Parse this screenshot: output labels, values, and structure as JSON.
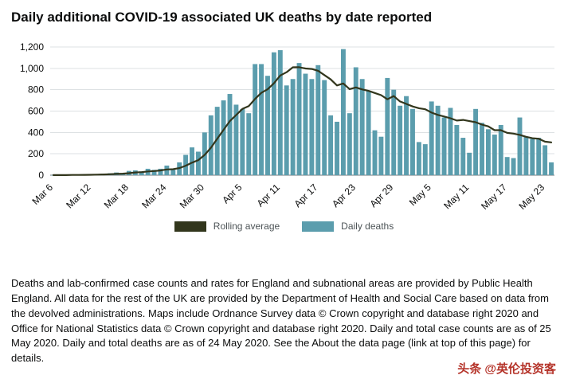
{
  "title": "Daily additional COVID-19 associated UK deaths by date reported",
  "chart_data": {
    "type": "bar",
    "title": "Daily additional COVID-19 associated UK deaths by date reported",
    "xlabel": "",
    "ylabel": "",
    "grid": true,
    "ylim": [
      0,
      1200
    ],
    "y_tick_values": [
      0,
      200,
      400,
      600,
      800,
      1000,
      1200
    ],
    "y_tick_labels": [
      "0",
      "200",
      "400",
      "600",
      "800",
      "1,000",
      "1,200"
    ],
    "x": [
      "Mar 6",
      "Mar 7",
      "Mar 8",
      "Mar 9",
      "Mar 10",
      "Mar 11",
      "Mar 12",
      "Mar 13",
      "Mar 14",
      "Mar 15",
      "Mar 16",
      "Mar 17",
      "Mar 18",
      "Mar 19",
      "Mar 20",
      "Mar 21",
      "Mar 22",
      "Mar 23",
      "Mar 24",
      "Mar 25",
      "Mar 26",
      "Mar 27",
      "Mar 28",
      "Mar 29",
      "Mar 30",
      "Mar 31",
      "Apr 1",
      "Apr 2",
      "Apr 3",
      "Apr 4",
      "Apr 5",
      "Apr 6",
      "Apr 7",
      "Apr 8",
      "Apr 9",
      "Apr 10",
      "Apr 11",
      "Apr 12",
      "Apr 13",
      "Apr 14",
      "Apr 15",
      "Apr 16",
      "Apr 17",
      "Apr 18",
      "Apr 19",
      "Apr 20",
      "Apr 21",
      "Apr 22",
      "Apr 23",
      "Apr 24",
      "Apr 25",
      "Apr 26",
      "Apr 27",
      "Apr 28",
      "Apr 29",
      "Apr 30",
      "May 1",
      "May 2",
      "May 3",
      "May 4",
      "May 5",
      "May 6",
      "May 7",
      "May 8",
      "May 9",
      "May 10",
      "May 11",
      "May 12",
      "May 13",
      "May 14",
      "May 15",
      "May 16",
      "May 17",
      "May 18",
      "May 19",
      "May 20",
      "May 21",
      "May 22",
      "May 23",
      "May 24"
    ],
    "x_tick_indices": [
      0,
      6,
      12,
      18,
      24,
      30,
      36,
      42,
      48,
      54,
      60,
      66,
      72,
      78
    ],
    "x_tick_labels": [
      "Mar 6",
      "Mar 12",
      "Mar 18",
      "Mar 24",
      "Mar 30",
      "Apr 5",
      "Apr 11",
      "Apr 17",
      "Apr 23",
      "Apr 29",
      "May 5",
      "May 11",
      "May 17",
      "May 23"
    ],
    "series": [
      {
        "name": "Daily deaths",
        "type": "bar",
        "color": "#5b9dad",
        "values": [
          1,
          1,
          2,
          3,
          4,
          6,
          8,
          10,
          14,
          18,
          25,
          20,
          40,
          45,
          35,
          60,
          50,
          60,
          90,
          50,
          120,
          190,
          260,
          220,
          400,
          560,
          640,
          700,
          760,
          660,
          620,
          580,
          1040,
          1040,
          930,
          1150,
          1170,
          840,
          900,
          1050,
          950,
          900,
          1030,
          890,
          560,
          500,
          1180,
          580,
          1010,
          900,
          790,
          420,
          360,
          910,
          800,
          650,
          740,
          620,
          310,
          290,
          690,
          650,
          540,
          630,
          470,
          350,
          210,
          620,
          490,
          430,
          380,
          470,
          170,
          160,
          540,
          360,
          340,
          350,
          280,
          120
        ]
      },
      {
        "name": "Rolling average",
        "type": "line",
        "color": "#32361c",
        "values": [
          1,
          1,
          1,
          2,
          2,
          3,
          4,
          5,
          7,
          9,
          12,
          14,
          19,
          25,
          28,
          35,
          39,
          44,
          54,
          56,
          66,
          89,
          117,
          141,
          190,
          257,
          341,
          424,
          506,
          563,
          620,
          646,
          714,
          771,
          804,
          860,
          933,
          964,
          1010,
          1011,
          999,
          994,
          977,
          937,
          897,
          840,
          859,
          806,
          821,
          803,
          789,
          769,
          749,
          710,
          741,
          690,
          667,
          643,
          627,
          617,
          586,
          564,
          549,
          533,
          511,
          517,
          506,
          496,
          473,
          457,
          421,
          421,
          396,
          389,
          377,
          359,
          346,
          341,
          314,
          307
        ]
      }
    ],
    "legend": [
      {
        "label": "Rolling average",
        "color": "#32361c"
      },
      {
        "label": "Daily deaths",
        "color": "#5b9dad"
      }
    ],
    "legend_position": "bottom-center"
  },
  "footer": {
    "text": "Deaths and lab-confirmed case counts and rates for England and subnational areas are provided by Public Health England. All data for the rest of the UK are provided by the Department of Health and Social Care based on data from the devolved administrations. Maps include Ordnance Survey data © Crown copyright and database right 2020 and Office for National Statistics data © Crown copyright and database right 2020. Daily and total case counts are as of 25 May 2020. Daily and total deaths are as of 24 May 2020. See the About the data page (link at top of this page) for details."
  },
  "watermark": {
    "text": "头条 @英伦投资客",
    "color": "#b5342a"
  }
}
